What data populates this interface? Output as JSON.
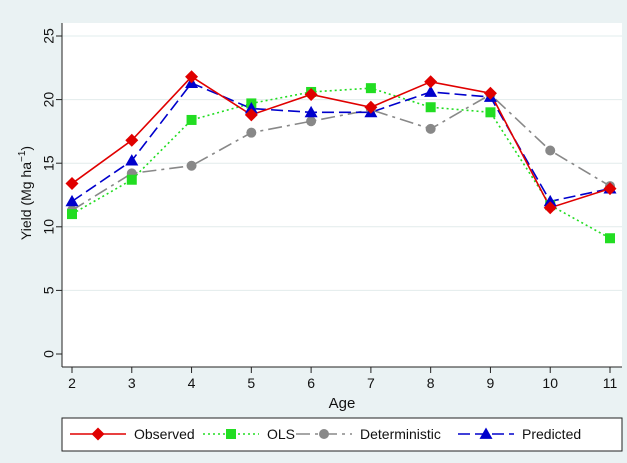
{
  "chart_data": {
    "type": "line",
    "title": "",
    "xlabel": "Age",
    "ylabel_main": "Yield (Mg ha",
    "ylabel_sup": "−1",
    "ylabel_close": ")",
    "x": [
      2,
      3,
      4,
      5,
      6,
      7,
      8,
      9,
      10,
      11
    ],
    "xlim": [
      2,
      11
    ],
    "ylim": [
      0,
      25
    ],
    "yticks": [
      0,
      5,
      10,
      15,
      20,
      25
    ],
    "grid": "horizontal",
    "legend_position": "bottom",
    "series": [
      {
        "name": "Observed",
        "color": "#e00000",
        "dash": "solid",
        "marker": "diamond",
        "values": [
          13.4,
          16.8,
          21.8,
          18.8,
          20.4,
          19.4,
          21.4,
          20.5,
          11.5,
          13.0
        ]
      },
      {
        "name": "OLS",
        "color": "#22dd22",
        "dash": "dotted",
        "marker": "square",
        "values": [
          11.0,
          13.7,
          18.4,
          19.7,
          20.6,
          20.9,
          19.4,
          19.0,
          11.7,
          9.1
        ]
      },
      {
        "name": "Deterministic",
        "color": "#888888",
        "dash": "longdash",
        "marker": "circle",
        "values": [
          11.3,
          14.2,
          14.8,
          17.4,
          18.3,
          19.2,
          17.7,
          20.4,
          16.0,
          13.2
        ]
      },
      {
        "name": "Predicted",
        "color": "#0000cc",
        "dash": "dash",
        "marker": "triangle",
        "values": [
          12.0,
          15.2,
          21.3,
          19.3,
          19.0,
          19.0,
          20.6,
          20.2,
          12.0,
          13.0
        ]
      }
    ]
  }
}
